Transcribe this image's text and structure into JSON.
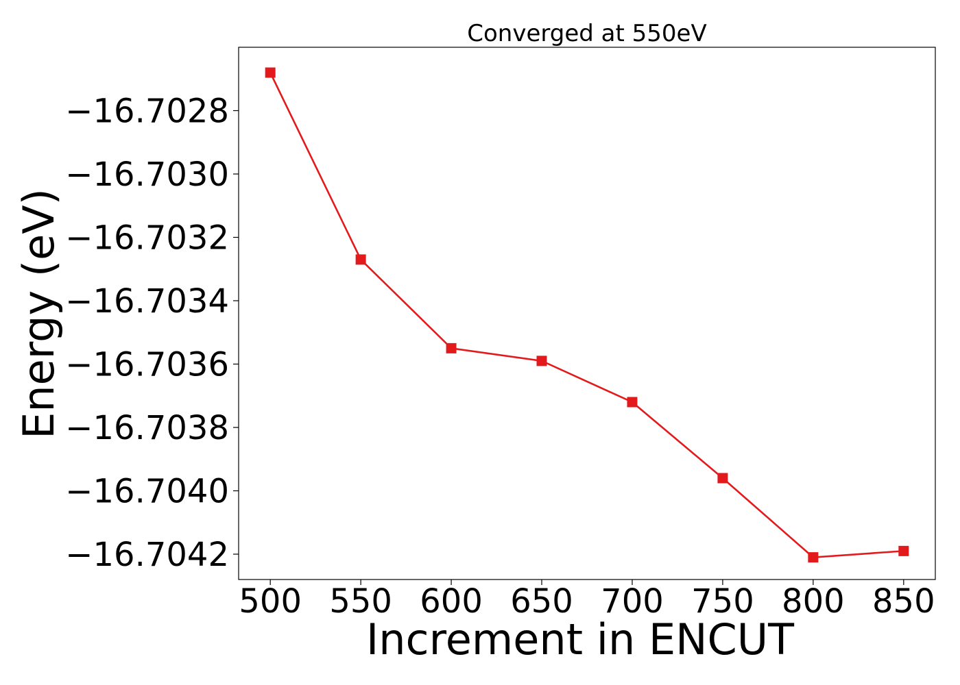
{
  "chart_data": {
    "type": "line",
    "title": "Converged at 550eV",
    "xlabel": "Increment in ENCUT",
    "ylabel": "Energy (eV)",
    "x": [
      500,
      550,
      600,
      650,
      700,
      750,
      800,
      850
    ],
    "series": [
      {
        "values": [
          -16.70268,
          -16.70327,
          -16.70355,
          -16.70359,
          -16.70372,
          -16.70396,
          -16.70421,
          -16.70419
        ],
        "color": "#e31a1c",
        "marker": "square"
      }
    ],
    "x_ticks": [
      500,
      550,
      600,
      650,
      700,
      750,
      800,
      850
    ],
    "x_tick_labels": [
      "500",
      "550",
      "600",
      "650",
      "700",
      "750",
      "800",
      "850"
    ],
    "y_ticks": [
      -16.7028,
      -16.703,
      -16.7032,
      -16.7034,
      -16.7036,
      -16.7038,
      -16.704,
      -16.7042
    ],
    "y_tick_labels": [
      "−16.7028",
      "−16.7030",
      "−16.7032",
      "−16.7034",
      "−16.7036",
      "−16.7038",
      "−16.7040",
      "−16.7042"
    ],
    "xlim": [
      482.5,
      867.5
    ],
    "ylim": [
      -16.70428,
      -16.7026
    ],
    "grid": false,
    "legend": "none"
  }
}
